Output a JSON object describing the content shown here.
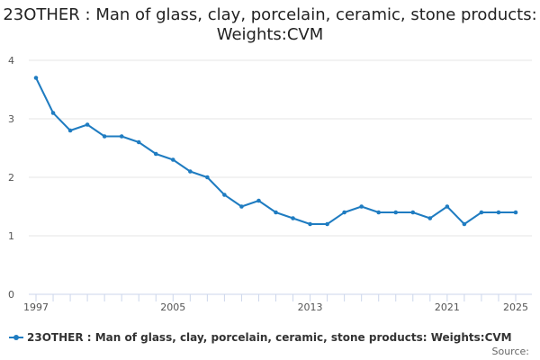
{
  "chart_data": {
    "type": "line",
    "title": "23OTHER : Man of glass, clay, porcelain, ceramic, stone products: Weights:CVM",
    "xlabel": "",
    "ylabel": "",
    "x": [
      1997,
      1998,
      1999,
      2000,
      2001,
      2002,
      2003,
      2004,
      2005,
      2006,
      2007,
      2008,
      2009,
      2010,
      2011,
      2012,
      2013,
      2014,
      2015,
      2016,
      2017,
      2018,
      2019,
      2020,
      2021,
      2022,
      2023,
      2024,
      2025
    ],
    "series": [
      {
        "name": "23OTHER : Man of glass, clay, porcelain, ceramic, stone products: Weights:CVM",
        "values": [
          3.7,
          3.1,
          2.8,
          2.9,
          2.7,
          2.7,
          2.6,
          2.4,
          2.3,
          2.1,
          2.0,
          1.7,
          1.5,
          1.6,
          1.4,
          1.3,
          1.2,
          1.2,
          1.4,
          1.5,
          1.4,
          1.4,
          1.4,
          1.3,
          1.5,
          1.2,
          1.4,
          1.4,
          1.4
        ],
        "color": "#1f7cc1"
      }
    ],
    "xlim": [
      1997,
      2025
    ],
    "ylim": [
      0,
      4
    ],
    "x_tick_labels": [
      "1997",
      "2005",
      "2013",
      "2021",
      "2025"
    ],
    "y_tick_labels": [
      "0",
      "1",
      "2",
      "3",
      "4"
    ],
    "grid": true,
    "legend": "bottom-left"
  },
  "source_label": "Source:"
}
